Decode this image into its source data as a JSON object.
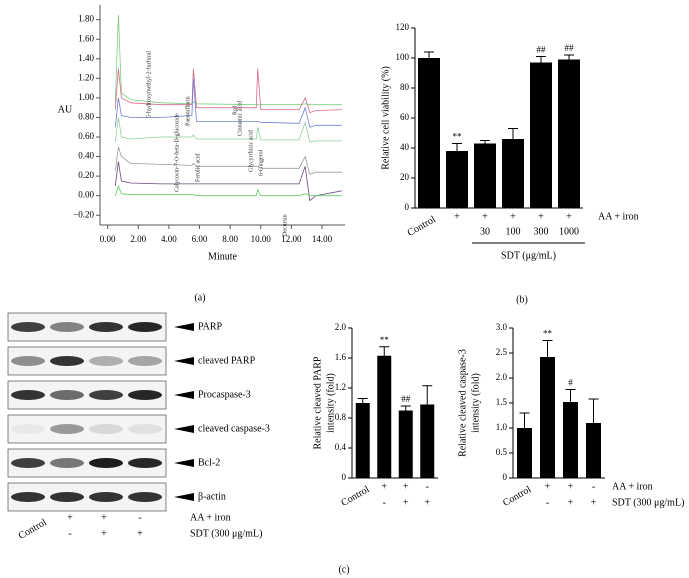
{
  "panels": [
    "(a)",
    "(b)",
    "(c)"
  ],
  "chart_data": [
    {
      "type": "line",
      "xlabel": "Minute",
      "ylabel": "AU",
      "x": [
        0.5,
        0.7,
        0.9,
        1.5,
        3.5,
        5.5,
        5.6,
        5.8,
        9.7,
        9.8,
        10,
        12.5,
        12.9,
        13.2,
        13.6,
        15.3
      ],
      "series": [
        {
          "color": "#7fcf7f",
          "values": [
            0.95,
            1.85,
            1.05,
            0.98,
            0.95,
            0.94,
            0.96,
            0.94,
            0.93,
            0.93,
            0.93,
            0.93,
            0.94,
            0.93,
            0.93,
            0.93
          ]
        },
        {
          "color": "#d96a8a",
          "values": [
            0.88,
            1.3,
            1.0,
            0.95,
            0.93,
            0.93,
            1.3,
            0.9,
            0.9,
            1.3,
            0.88,
            0.88,
            1.0,
            0.85,
            0.87,
            0.88
          ]
        },
        {
          "color": "#6f7fd6",
          "values": [
            0.7,
            1.0,
            0.82,
            0.8,
            0.8,
            0.82,
            1.2,
            0.76,
            0.76,
            0.76,
            0.75,
            0.74,
            0.9,
            0.7,
            0.72,
            0.72
          ]
        },
        {
          "color": "#8fd0a0",
          "values": [
            0.55,
            0.8,
            0.6,
            0.58,
            0.6,
            0.6,
            0.62,
            0.58,
            0.58,
            0.7,
            0.57,
            0.57,
            0.75,
            0.55,
            0.56,
            0.56
          ]
        },
        {
          "color": "#999999",
          "values": [
            0.25,
            0.5,
            0.4,
            0.33,
            0.32,
            0.31,
            0.33,
            0.3,
            0.3,
            0.3,
            0.28,
            0.28,
            0.4,
            0.22,
            0.24,
            0.24
          ]
        },
        {
          "color": "#6a4a7a",
          "values": [
            0.1,
            0.35,
            0.15,
            0.13,
            0.12,
            0.12,
            0.12,
            0.12,
            0.12,
            0.12,
            0.12,
            0.12,
            0.3,
            -0.05,
            0.0,
            0.05
          ]
        },
        {
          "color": "#66cc66",
          "values": [
            0.0,
            0.1,
            0.02,
            0.01,
            0.01,
            0.01,
            0.01,
            0.0,
            0.0,
            0.06,
            0.0,
            0.0,
            0.02,
            0.0,
            0.0,
            0.0
          ]
        }
      ],
      "annotations": [
        "5-hydroxymethyl-2-furfural",
        "Calycosin-7-O-beta-D-glucoside",
        "Paeoniflorin",
        "Ferulic acid",
        "Rg1",
        "Cinnamic acid",
        "Glycyrrhizic acid",
        "6-Gingerol",
        "Decursin"
      ],
      "xlim": [
        -0.5,
        15.5
      ],
      "xticks": [
        {
          "value": 0,
          "label": "0.00"
        },
        {
          "value": 2,
          "label": "2.00"
        },
        {
          "value": 4,
          "label": "4.00"
        },
        {
          "value": 6,
          "label": "6.00"
        },
        {
          "value": 8,
          "label": "8.00"
        },
        {
          "value": 10,
          "label": "10.00"
        },
        {
          "value": 12,
          "label": "12.00"
        },
        {
          "value": 14,
          "label": "14.00"
        }
      ],
      "ylim": [
        -0.3,
        1.95
      ],
      "yticks": [
        {
          "value": -0.2,
          "label": "−0.20"
        },
        {
          "value": 0,
          "label": "0.00"
        },
        {
          "value": 0.2,
          "label": "0.20"
        },
        {
          "value": 0.4,
          "label": "0.40"
        },
        {
          "value": 0.6,
          "label": "0.60"
        },
        {
          "value": 0.8,
          "label": "0.80"
        },
        {
          "value": 1,
          "label": "1.00"
        },
        {
          "value": 1.2,
          "label": "1.20"
        },
        {
          "value": 1.4,
          "label": "1.40"
        },
        {
          "value": 1.6,
          "label": "1.60"
        },
        {
          "value": 1.8,
          "label": "1.80"
        }
      ]
    },
    {
      "type": "bar",
      "ylabel": [
        "Relative cell viability (%)"
      ],
      "categories": [
        "Control",
        "+",
        "+",
        "+",
        "+",
        "+"
      ],
      "row_name": "AA + iron",
      "rows2": [
        null,
        null,
        "30",
        "100",
        "300",
        "1000"
      ],
      "group_label": "SDT (μg/mL)",
      "values": [
        100,
        38,
        43,
        46,
        97,
        99
      ],
      "errors": [
        4,
        5,
        2,
        7,
        4,
        3
      ],
      "annotations": [
        null,
        "**",
        null,
        null,
        "##",
        "##"
      ],
      "color": "#000000",
      "ylim": [
        0,
        120
      ],
      "yticks": [
        0,
        20,
        40,
        60,
        80,
        100,
        120
      ]
    },
    {
      "type": "bar",
      "ylabel": [
        "Relative cleaved PARP",
        "intensity (fold)"
      ],
      "categories": [
        "Control",
        "+",
        "+",
        "-"
      ],
      "rows2": [
        null,
        "-",
        "+",
        "+"
      ],
      "values": [
        1.0,
        1.63,
        0.9,
        0.98
      ],
      "errors": [
        0.06,
        0.12,
        0.06,
        0.25
      ],
      "annotations": [
        null,
        "**",
        "##",
        null
      ],
      "color": "#000000",
      "ylim": [
        0,
        2
      ],
      "yticks": [
        0,
        0.4,
        0.8,
        1.2,
        1.6,
        {
          "value": 2,
          "label": "2.0"
        }
      ]
    },
    {
      "type": "bar",
      "ylabel": [
        "Relative cleaved caspase-3",
        "intensity (fold)"
      ],
      "categories": [
        "Control",
        "+",
        "+",
        "-"
      ],
      "row_name": "AA + iron",
      "rows2": [
        null,
        "-",
        "+",
        "+"
      ],
      "rows2_name": "SDT (300 μg/mL)",
      "values": [
        1.0,
        2.42,
        1.52,
        1.1
      ],
      "errors": [
        0.3,
        0.33,
        0.25,
        0.48
      ],
      "annotations": [
        null,
        "**",
        "#",
        null
      ],
      "color": "#000000",
      "ylim": [
        0,
        3
      ],
      "yticks": [
        0,
        0.5,
        {
          "value": 1,
          "label": "1.0"
        },
        1.5,
        {
          "value": 2,
          "label": "2.0"
        },
        2.5,
        {
          "value": 3,
          "label": "3.0"
        }
      ]
    }
  ],
  "blot": {
    "labels": [
      "PARP",
      "cleaved PARP",
      "Procaspase-3",
      "cleaved caspase-3",
      "Bcl-2",
      "β-actin"
    ],
    "control": "Control",
    "aa": [
      "+",
      "+",
      "-"
    ],
    "sdt": [
      "-",
      "+",
      "+"
    ],
    "aa_name": "AA + iron",
    "sdt_name": "SDT (300 μg/mL)"
  }
}
